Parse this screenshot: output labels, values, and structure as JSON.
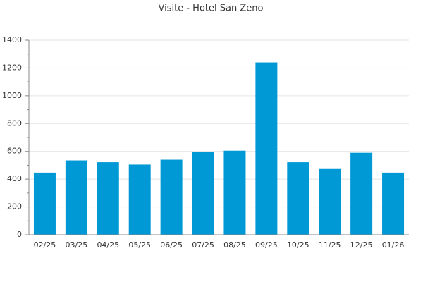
{
  "chart_data": {
    "type": "bar",
    "title": "Visite - Hotel San Zeno",
    "categories": [
      "02/25",
      "03/25",
      "04/25",
      "05/25",
      "06/25",
      "07/25",
      "08/25",
      "09/25",
      "10/25",
      "11/25",
      "12/25",
      "01/26"
    ],
    "values": [
      447,
      535,
      522,
      505,
      540,
      595,
      605,
      1240,
      522,
      473,
      590,
      447
    ],
    "color": "#0099d6",
    "ylim": [
      0,
      1400
    ],
    "yticks": [
      0,
      200,
      400,
      600,
      800,
      1000,
      1200,
      1400
    ],
    "grid": true
  }
}
